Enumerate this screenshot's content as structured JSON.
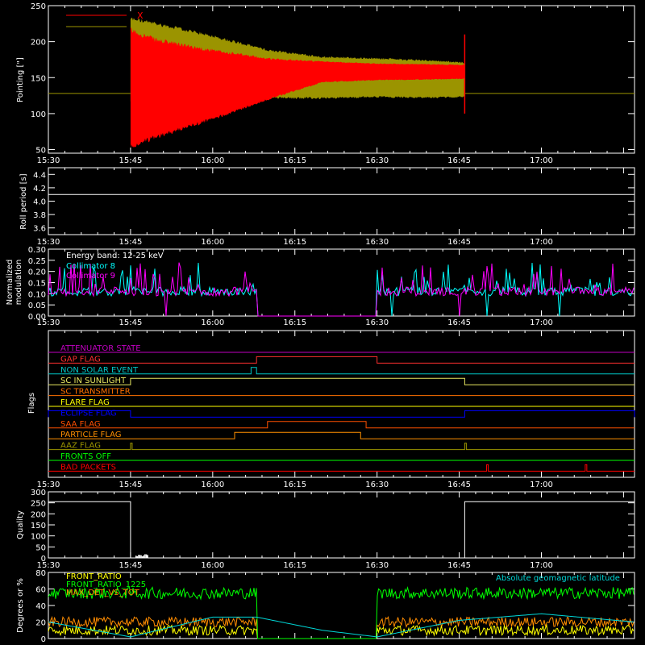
{
  "colors": {
    "background": "#000000",
    "axis": "#ffffff",
    "x": "#ff0000",
    "y": "#9b9400",
    "roll": "#ffffff",
    "collimator8": "#00ffff",
    "collimator9": "#ff00ff",
    "quality": "#ffffff",
    "front_ratio": "#ffff00",
    "front_ratio_1225": "#00ff00",
    "max_det_vs_tot": "#ff8c00",
    "geomag": "#00d8d8"
  },
  "time_ticks": [
    "15:30",
    "15:45",
    "16:00",
    "16:15",
    "16:30",
    "16:45",
    "17:00"
  ],
  "chart_data": [
    {
      "type": "line",
      "ylabel": "Pointing [\"]",
      "ylim": [
        45,
        250
      ],
      "yticks": [
        "250",
        "200",
        "150",
        "100",
        "50"
      ],
      "xlim": [
        "15:30",
        "17:17"
      ],
      "legend_position": "top-left",
      "baseline_value": 128,
      "series": [
        {
          "name": "X",
          "color": "#ff0000",
          "x": [
            "15:45",
            "15:50",
            "16:00",
            "16:10",
            "16:20",
            "16:30",
            "16:40",
            "16:46"
          ],
          "center": [
            135,
            135,
            140,
            148,
            158,
            158,
            158,
            158
          ],
          "amplitude": [
            85,
            70,
            50,
            30,
            15,
            12,
            11,
            10
          ]
        },
        {
          "name": "Y",
          "color": "#9b9400",
          "x": [
            "15:45",
            "15:50",
            "16:00",
            "16:10",
            "16:20",
            "16:30",
            "16:40",
            "16:46"
          ],
          "center": [
            175,
            172,
            165,
            155,
            150,
            150,
            148,
            147
          ],
          "amplitude": [
            60,
            55,
            45,
            35,
            30,
            28,
            27,
            25
          ]
        }
      ]
    },
    {
      "type": "line",
      "ylabel": "Roll period [s]",
      "ylim": [
        3.5,
        4.5
      ],
      "yticks": [
        "4.4",
        "4.2",
        "4.0",
        "3.8",
        "3.6"
      ],
      "series": [
        {
          "name": "",
          "x": [
            "15:30",
            "17:17"
          ],
          "values": [
            4.1,
            4.1
          ]
        }
      ]
    },
    {
      "type": "line",
      "ylabel": "Normalized modulation",
      "ylim": [
        0.0,
        0.3
      ],
      "yticks": [
        "0.30",
        "0.25",
        "0.20",
        "0.15",
        "0.10",
        "0.05",
        "0.00"
      ],
      "annotation": "Energy band: 12-25 keV",
      "series": [
        {
          "name": "Collimator 8",
          "active_ranges": [
            [
              "15:30",
              "16:08"
            ],
            [
              "16:30",
              "17:17"
            ]
          ],
          "base_value": 0.09,
          "off_value": 0.0
        },
        {
          "name": "Collimator 9",
          "active_ranges": [
            [
              "15:30",
              "16:08"
            ],
            [
              "16:30",
              "17:17"
            ]
          ],
          "base_value": 0.09,
          "off_value": 0.0
        }
      ]
    },
    {
      "type": "line",
      "ylabel": "Flags",
      "series": [
        {
          "name": "ATTENUATOR STATE",
          "color": "#c000c0",
          "high": []
        },
        {
          "name": "GAP FLAG",
          "color": "#ff3030",
          "high": [
            [
              "16:08",
              "16:30"
            ]
          ]
        },
        {
          "name": "NON SOLAR EVENT",
          "color": "#00c8c8",
          "high": [
            [
              "16:07",
              "16:08"
            ]
          ]
        },
        {
          "name": "SC IN SUNLIGHT",
          "color": "#e8e860",
          "high": [
            [
              "15:45",
              "16:46"
            ]
          ]
        },
        {
          "name": "SC TRANSMITTER",
          "color": "#ff7000",
          "high": []
        },
        {
          "name": "FLARE FLAG",
          "color": "#ffff00",
          "high": []
        },
        {
          "name": "ECLIPSE FLAG",
          "color": "#0000ff",
          "high": [
            [
              "15:30",
              "15:45"
            ],
            [
              "16:46",
              "17:17"
            ]
          ]
        },
        {
          "name": "SAA FLAG",
          "color": "#ff5000",
          "high": [
            [
              "16:10",
              "16:28"
            ]
          ]
        },
        {
          "name": "PARTICLE FLAG",
          "color": "#ff9000",
          "high": [
            [
              "16:04",
              "16:27"
            ]
          ]
        },
        {
          "name": "AAZ FLAG",
          "color": "#9b9400",
          "high": [
            [
              "15:45",
              "15:45"
            ],
            [
              "16:46",
              "16:46"
            ]
          ]
        },
        {
          "name": "FRONTS OFF",
          "color": "#00ff00",
          "high": []
        },
        {
          "name": "BAD PACKETS",
          "color": "#ff0000",
          "high": [
            [
              "16:50",
              "16:50"
            ],
            [
              "17:08",
              "17:08"
            ]
          ]
        }
      ]
    },
    {
      "type": "line",
      "ylabel": "Quality",
      "ylim": [
        0,
        300
      ],
      "yticks": [
        "300",
        "250",
        "200",
        "150",
        "100",
        "50",
        "0"
      ],
      "series": [
        {
          "name": "",
          "x": [
            "15:30",
            "15:45",
            "15:45",
            "15:48",
            "16:45",
            "16:46",
            "16:46",
            "17:17"
          ],
          "values": [
            255,
            255,
            0,
            0,
            0,
            0,
            255,
            255
          ]
        }
      ]
    },
    {
      "type": "line",
      "ylabel": "Degrees or %",
      "ylim": [
        0,
        80
      ],
      "yticks": [
        "80",
        "60",
        "40",
        "20",
        "0"
      ],
      "annotation": "Absolute geomagnetic latitude",
      "legend_position": "top-left",
      "series": [
        {
          "name": "FRONT_RATIO",
          "color": "#ffff00",
          "active_ranges": [
            [
              "15:30",
              "16:08"
            ],
            [
              "16:30",
              "17:17"
            ]
          ],
          "base_value": 10
        },
        {
          "name": "FRONT_RATIO_1225",
          "color": "#00ff00",
          "active_ranges": [
            [
              "15:30",
              "16:08"
            ],
            [
              "16:30",
              "17:17"
            ]
          ],
          "base_value": 55
        },
        {
          "name": "MAX_DET_VS_TOT",
          "color": "#ff8c00",
          "active_ranges": [
            [
              "15:30",
              "16:08"
            ],
            [
              "16:30",
              "17:17"
            ]
          ],
          "base_value": 20
        },
        {
          "name": "Absolute geomagnetic latitude",
          "color": "#00d8d8",
          "x": [
            "15:30",
            "15:45",
            "16:00",
            "16:08",
            "16:20",
            "16:30",
            "16:45",
            "17:00",
            "17:17"
          ],
          "values": [
            20,
            2,
            26,
            26,
            10,
            2,
            22,
            30,
            20
          ]
        }
      ]
    }
  ]
}
